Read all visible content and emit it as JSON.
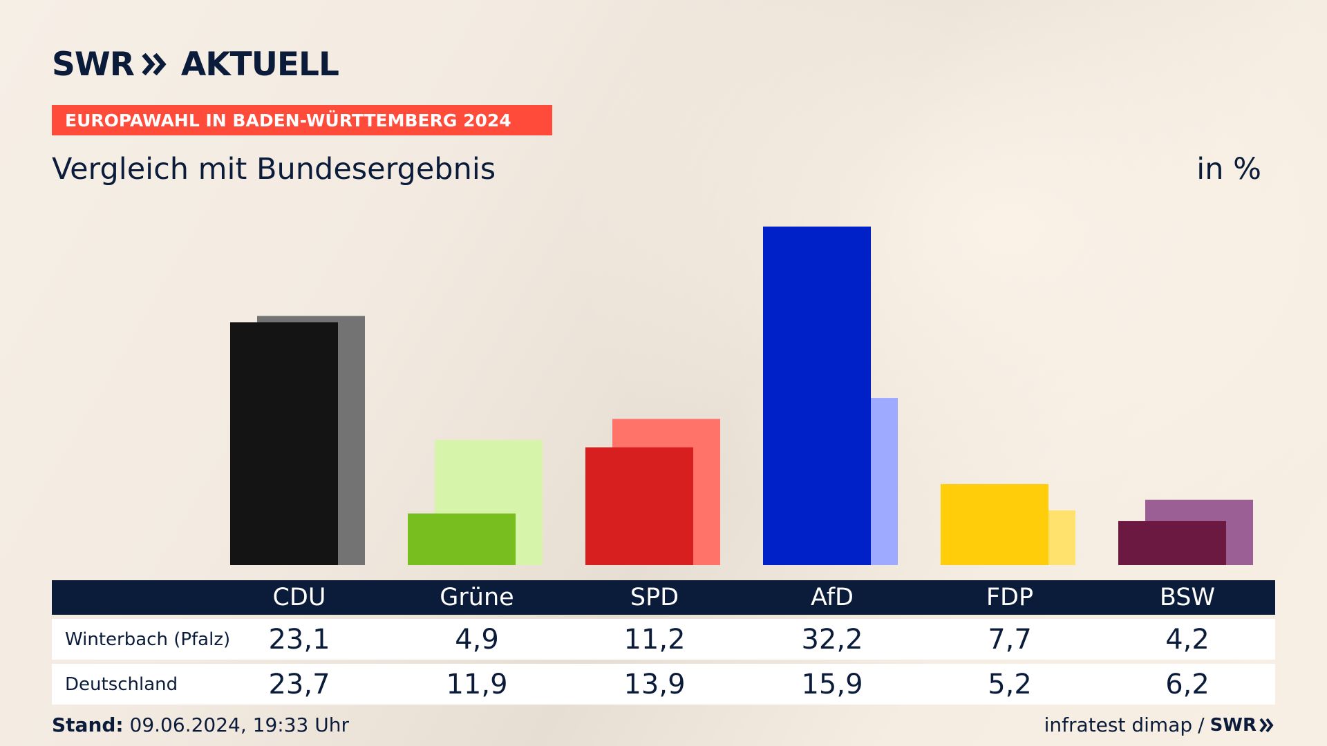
{
  "brand": {
    "name": "SWR",
    "product": "AKTUELL",
    "icon": "double-chevron-icon"
  },
  "banner": "EUROPAWAHL IN BADEN-WÜRTTEMBERG 2024",
  "subtitle": "Vergleich mit Bundesergebnis",
  "unit": "in %",
  "chart_data": {
    "type": "bar",
    "title": "Vergleich mit Bundesergebnis",
    "ylabel": "in %",
    "ylim": [
      0,
      32.2
    ],
    "grid": false,
    "categories": [
      "CDU",
      "Grüne",
      "SPD",
      "AfD",
      "FDP",
      "BSW"
    ],
    "series": [
      {
        "name": "Winterbach (Pfalz)",
        "values": [
          23.1,
          4.9,
          11.2,
          32.2,
          7.7,
          4.2
        ],
        "display": [
          "23,1",
          "4,9",
          "11,2",
          "32,2",
          "7,7",
          "4,2"
        ],
        "colors": [
          "#141414",
          "#78be1e",
          "#d71f20",
          "#0021c8",
          "#ffcd0a",
          "#6b1940"
        ]
      },
      {
        "name": "Deutschland",
        "values": [
          23.7,
          11.9,
          13.9,
          15.9,
          5.2,
          6.2
        ],
        "display": [
          "23,7",
          "11,9",
          "13,9",
          "15,9",
          "5,2",
          "6,2"
        ],
        "colors": [
          "#737373",
          "#d7f5aa",
          "#ff7369",
          "#9eaaff",
          "#ffe16e",
          "#9b5f96"
        ]
      }
    ]
  },
  "footer": {
    "stand_label": "Stand:",
    "stand_value": "09.06.2024, 19:33 Uhr",
    "source": "infratest dimap",
    "separator": "/",
    "source_brand": "SWR"
  }
}
